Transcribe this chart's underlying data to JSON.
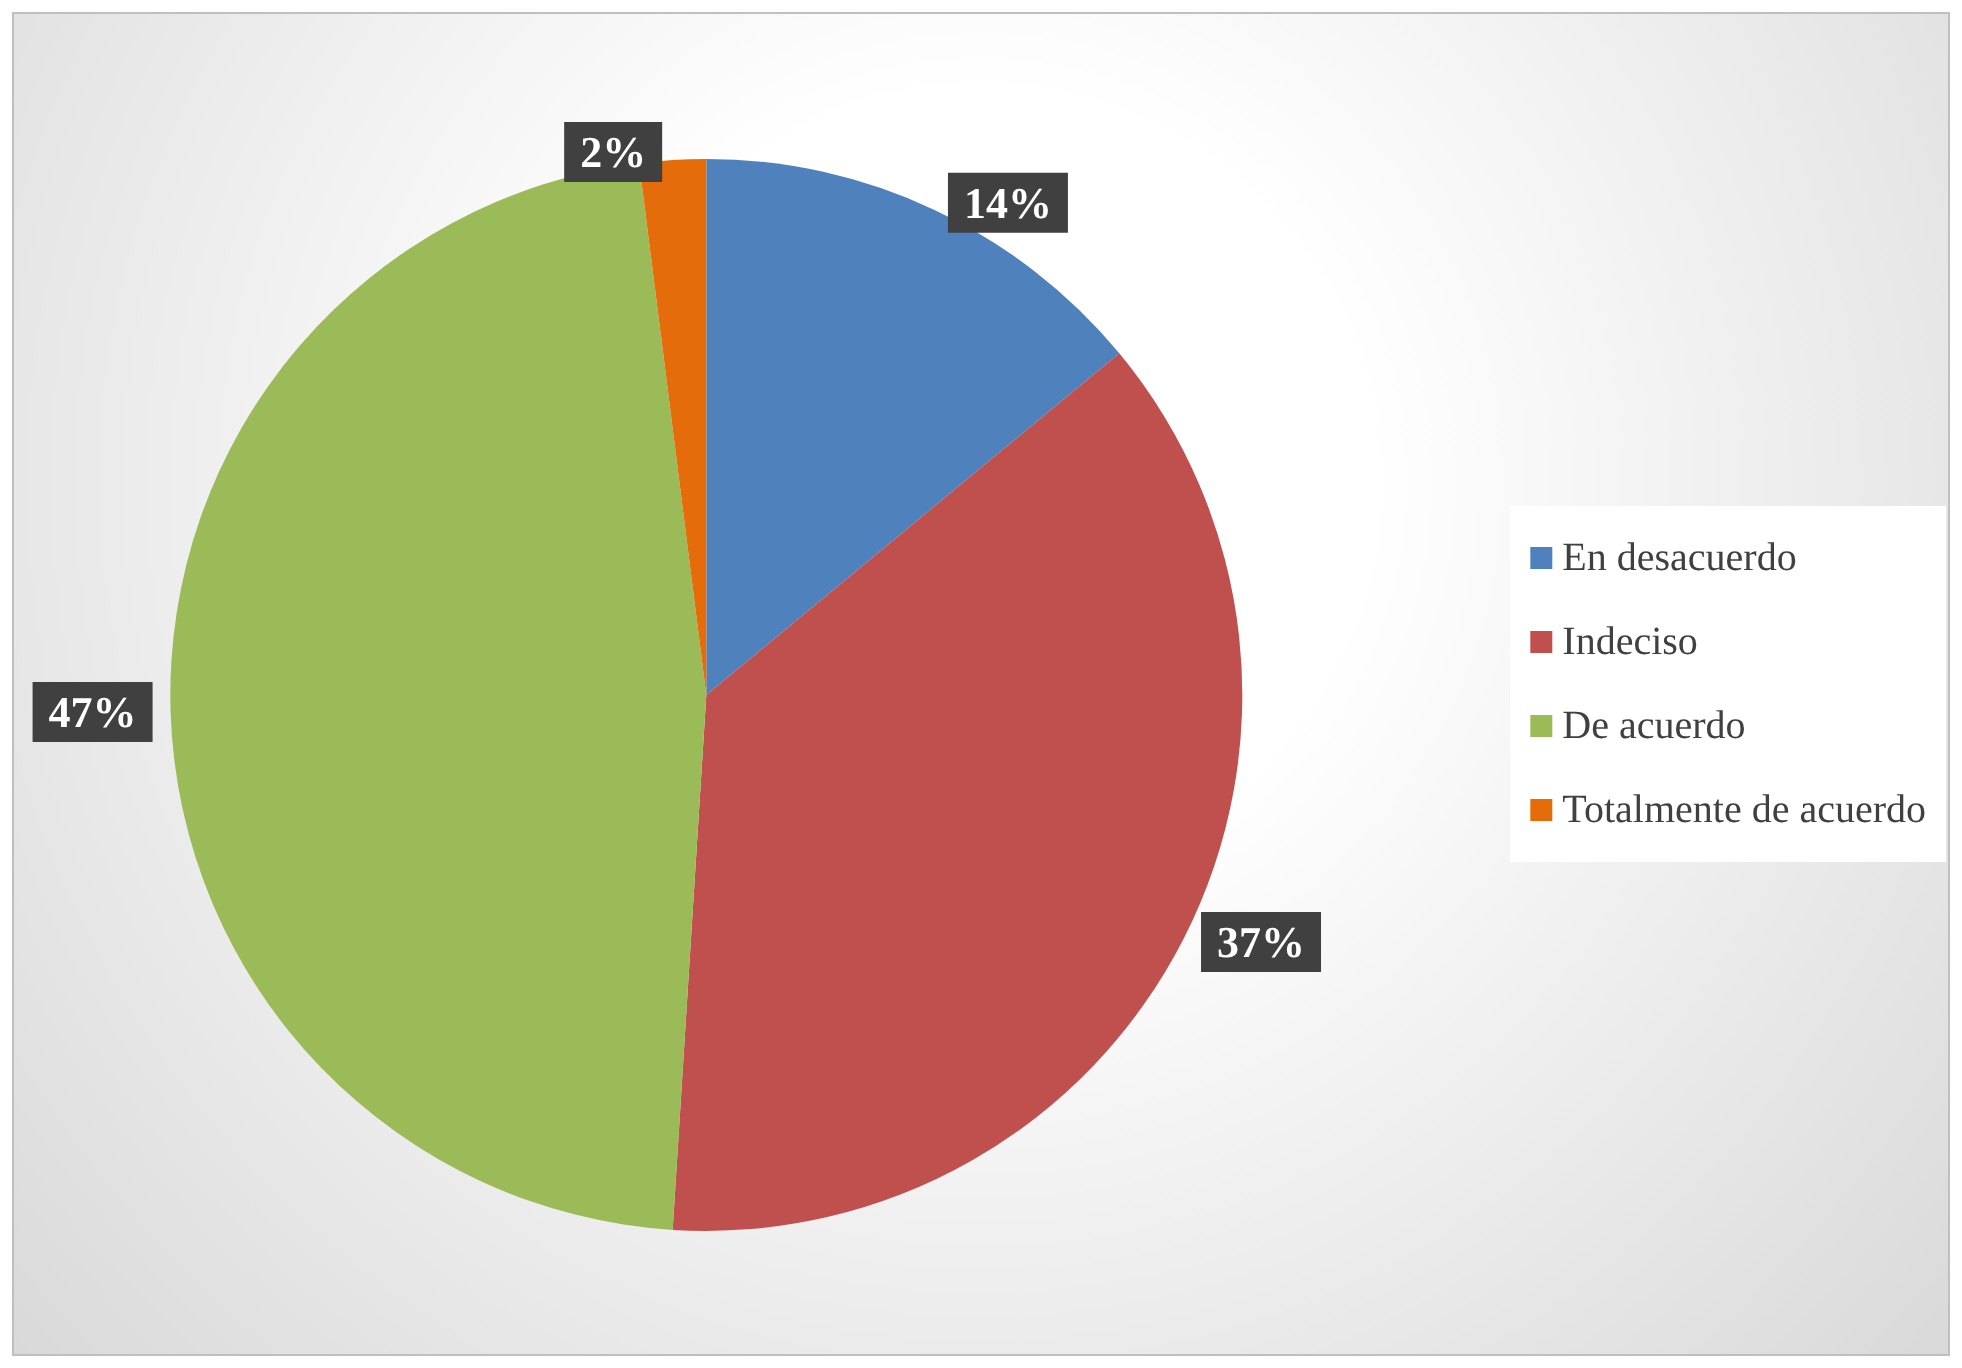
{
  "chart_data": {
    "type": "pie",
    "categories": [
      "En desacuerdo",
      "Indeciso",
      "De acuerdo",
      "Totalmente de acuerdo"
    ],
    "values": [
      14,
      37,
      47,
      2
    ],
    "value_labels": [
      "14%",
      "37%",
      "47%",
      "2%"
    ],
    "colors": [
      "#4f81bd",
      "#c0504d",
      "#9bbb59",
      "#e46c0a"
    ],
    "legend": "right"
  }
}
